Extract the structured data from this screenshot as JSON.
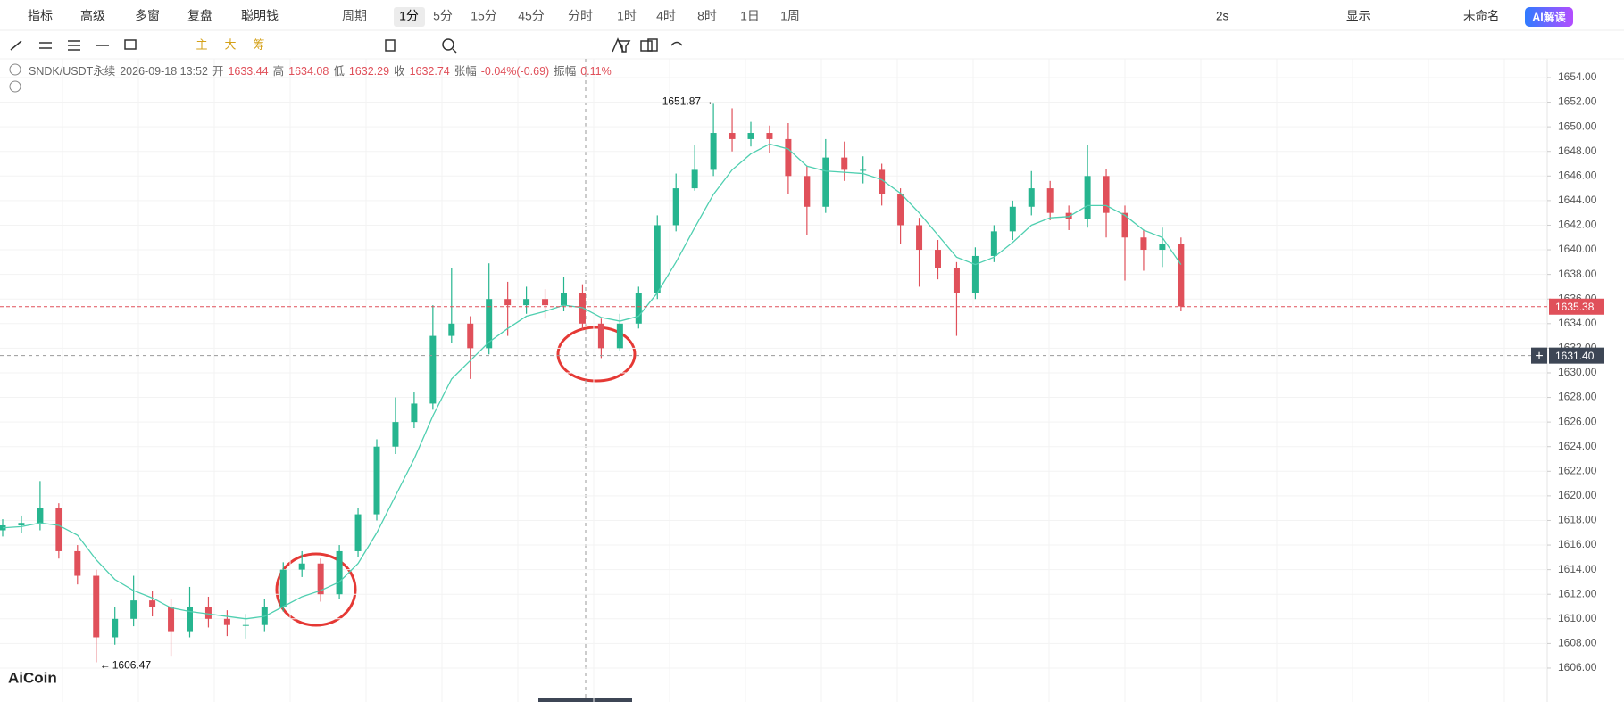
{
  "toolbar": {
    "left": [
      "指标",
      "高级",
      "多窗",
      "复盘",
      "聪明钱"
    ],
    "period_label": "周期",
    "periods": [
      "1分",
      "5分",
      "15分",
      "45分",
      "分时",
      "1时",
      "4时",
      "8时",
      "1日",
      "1周"
    ],
    "selected_period": 0,
    "right": [
      "2s",
      "显示",
      "未命名"
    ],
    "ai_button": "AI解读",
    "drawing_labels": [
      "主",
      "大",
      "筹"
    ]
  },
  "symbol_info": {
    "symbol": "SNDK/USDT永续",
    "time": "2026-09-18 13:52",
    "fields": [
      {
        "label": "开",
        "value": 1633.44
      },
      {
        "label": "高",
        "value": 1634.08
      },
      {
        "label": "低",
        "value": 1632.29
      },
      {
        "label": "收",
        "value": 1632.74
      },
      {
        "label": "张幅",
        "value": "-0.04%(-0.69)"
      },
      {
        "label": "振幅",
        "value": "0.11%"
      }
    ]
  },
  "watermark": "AiCoin",
  "chart_data": {
    "type": "candlestick",
    "up_color": "#26b58f",
    "down_color": "#e0505a",
    "open": [
      1617.2,
      1617.6,
      1617.8,
      1619,
      1615.5,
      1613.5,
      1608.5,
      1610,
      1611.5,
      1611,
      1609,
      1611,
      1610,
      1609.5,
      1609.5,
      1611,
      1614,
      1614.5,
      1612,
      1615.5,
      1618.5,
      1624,
      1626,
      1627.5,
      1633,
      1634,
      1632,
      1636,
      1635.5,
      1636,
      1635.5,
      1636.5,
      1634,
      1632,
      1634,
      1636.5,
      1642,
      1645,
      1646.5,
      1649.5,
      1649,
      1649.5,
      1649,
      1646,
      1643.5,
      1647.5,
      1646.5,
      1646.5,
      1644.5,
      1642,
      1640,
      1638.5,
      1636.5,
      1639.5,
      1641.5,
      1643.5,
      1645,
      1643,
      1642.5,
      1646,
      1643,
      1641,
      1640,
      1640.5
    ],
    "high": [
      1618.1,
      1618.4,
      1621.2,
      1619.4,
      1616,
      1614,
      1611,
      1613.5,
      1612.3,
      1611.6,
      1612.6,
      1611.8,
      1610.7,
      1610.4,
      1611.6,
      1614.6,
      1615.5,
      1614.9,
      1616,
      1619,
      1624.6,
      1628,
      1628.4,
      1635.5,
      1638.5,
      1634.6,
      1638.9,
      1637.4,
      1637,
      1636.8,
      1637.8,
      1637.2,
      1634.4,
      1634.8,
      1637,
      1642.8,
      1646.2,
      1648.5,
      1651.87,
      1651.5,
      1650.4,
      1650.1,
      1650.3,
      1646.8,
      1649,
      1648.8,
      1647.6,
      1647,
      1645,
      1642.6,
      1640.8,
      1639,
      1640.2,
      1642,
      1644,
      1646.4,
      1645.6,
      1643.6,
      1648.5,
      1646.6,
      1643.6,
      1641.6,
      1641.8,
      1641
    ],
    "low": [
      1616.7,
      1617,
      1617.2,
      1614.9,
      1612.8,
      1606.47,
      1607.9,
      1609.4,
      1610.2,
      1607,
      1608.5,
      1609.3,
      1608.6,
      1608.4,
      1609,
      1610.6,
      1613.4,
      1611.4,
      1611.6,
      1615,
      1618,
      1623.4,
      1625.5,
      1627,
      1632.4,
      1629.5,
      1631.5,
      1633,
      1634.8,
      1634.4,
      1635,
      1633.5,
      1631.2,
      1631.8,
      1633.6,
      1636,
      1641.5,
      1644.8,
      1646,
      1648,
      1648.4,
      1647.9,
      1644.5,
      1641.2,
      1643,
      1645.6,
      1645.4,
      1643.6,
      1640.5,
      1637,
      1637.6,
      1633,
      1636,
      1639,
      1640.8,
      1642.8,
      1642.4,
      1641.6,
      1641.8,
      1641,
      1637.5,
      1638.3,
      1638.6,
      1635
    ],
    "close": [
      1617.6,
      1617.8,
      1619,
      1615.5,
      1613.5,
      1608.5,
      1610,
      1611.5,
      1611,
      1609,
      1611,
      1610,
      1609.5,
      1609.5,
      1611,
      1614,
      1614.5,
      1612,
      1615.5,
      1618.5,
      1624,
      1626,
      1627.5,
      1633,
      1634,
      1632,
      1636,
      1635.5,
      1636,
      1635.5,
      1636.5,
      1634,
      1632,
      1634,
      1636.5,
      1642,
      1645,
      1646.5,
      1649.5,
      1649,
      1649.5,
      1649,
      1646,
      1643.5,
      1647.5,
      1646.5,
      1646.5,
      1644.5,
      1642,
      1640,
      1638.5,
      1636.5,
      1639.5,
      1641.5,
      1643.5,
      1645,
      1643,
      1642.5,
      1646,
      1643,
      1641,
      1640,
      1640.5,
      1635.4
    ],
    "ma": {
      "color": "#4fcfb0",
      "values": [
        1617.4,
        1617.5,
        1617.8,
        1617.6,
        1616.8,
        1614.8,
        1613.2,
        1612.3,
        1611.7,
        1610.9,
        1610.6,
        1610.4,
        1610.2,
        1610,
        1610.2,
        1611,
        1611.8,
        1612.3,
        1613,
        1614.5,
        1617,
        1620,
        1623,
        1626.5,
        1629.5,
        1631,
        1632.5,
        1633.6,
        1634.6,
        1635,
        1635.5,
        1635.3,
        1634.5,
        1634.2,
        1634.6,
        1636.5,
        1639,
        1641.8,
        1644.5,
        1646.5,
        1647.8,
        1648.6,
        1648.2,
        1646.8,
        1646.4,
        1646.3,
        1646.2,
        1645.7,
        1644.6,
        1643,
        1641.2,
        1639.4,
        1638.8,
        1639.4,
        1640.6,
        1642,
        1642.6,
        1642.7,
        1643.6,
        1643.6,
        1642.8,
        1641.6,
        1641,
        1638.8
      ]
    },
    "ylim": [
      1603.75,
      1655.23
    ],
    "yticks": [
      {
        "value": 1606,
        "label": "1606.00"
      },
      {
        "value": 1608,
        "label": "1608.00"
      },
      {
        "value": 1610,
        "label": "1610.00"
      },
      {
        "value": 1612,
        "label": "1612.00"
      },
      {
        "value": 1614,
        "label": "1614.00"
      },
      {
        "value": 1616,
        "label": "1616.00"
      },
      {
        "value": 1618,
        "label": "1618.00"
      },
      {
        "value": 1620,
        "label": "1620.00"
      },
      {
        "value": 1622,
        "label": "1622.00"
      },
      {
        "value": 1624,
        "label": "1624.00"
      },
      {
        "value": 1626,
        "label": "1626.00"
      },
      {
        "value": 1628,
        "label": "1628.00"
      },
      {
        "value": 1630,
        "label": "1630.00"
      },
      {
        "value": 1632,
        "label": "1632.00"
      },
      {
        "value": 1634,
        "label": "1634.00"
      },
      {
        "value": 1636,
        "label": "1636.00"
      },
      {
        "value": 1638,
        "label": "1638.00"
      },
      {
        "value": 1640,
        "label": "1640.00"
      },
      {
        "value": 1642,
        "label": "1642.00"
      },
      {
        "value": 1644,
        "label": "1644.00"
      },
      {
        "value": 1646,
        "label": "1646.00"
      },
      {
        "value": 1648,
        "label": "1648.00"
      },
      {
        "value": 1650,
        "label": "1650.00"
      },
      {
        "value": 1652,
        "label": "1652.00"
      },
      {
        "value": 1654,
        "label": "1654.00"
      }
    ],
    "grid": true,
    "last_price": 1635.38,
    "crosshair_price": {
      "value": 1631.4,
      "label": "1631.40"
    }
  }
}
